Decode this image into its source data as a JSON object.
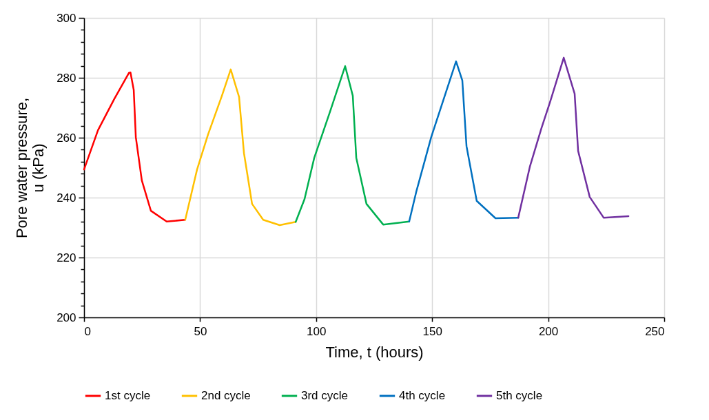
{
  "chart_data": {
    "type": "line",
    "xlabel": "Time, t (hours)",
    "ylabel": "Pore water pressure, u (kPa)",
    "xlim": [
      0,
      250
    ],
    "xticks": [
      0,
      50,
      100,
      150,
      200,
      250
    ],
    "ylim": [
      200,
      300
    ],
    "yticks": [
      200,
      {
        "value": 204,
        "label": null
      },
      {
        "value": 208,
        "label": null
      },
      {
        "value": 212,
        "label": null
      },
      {
        "value": 216,
        "label": null
      },
      220,
      {
        "value": 224,
        "label": null
      },
      {
        "value": 228,
        "label": null
      },
      {
        "value": 232,
        "label": null
      },
      {
        "value": 236,
        "label": null
      },
      240,
      {
        "value": 244,
        "label": null
      },
      {
        "value": 248,
        "label": null
      },
      {
        "value": 252,
        "label": null
      },
      {
        "value": 256,
        "label": null
      },
      260,
      {
        "value": 264,
        "label": null
      },
      {
        "value": 268,
        "label": null
      },
      {
        "value": 272,
        "label": null
      },
      {
        "value": 276,
        "label": null
      },
      280,
      {
        "value": 284,
        "label": null
      },
      {
        "value": 288,
        "label": null
      },
      {
        "value": 292,
        "label": null
      },
      {
        "value": 296,
        "label": null
      },
      300
    ],
    "grid": true,
    "legend": "bottom",
    "marker": "none",
    "line_style": "solid",
    "series": [
      {
        "name": "1st cycle",
        "color": "#ff0000",
        "x": [
          0,
          6,
          13,
          19.3,
          20,
          21.4,
          22.3,
          24.9,
          28.8,
          35.6,
          43.6
        ],
        "values": [
          249.4,
          262.5,
          272.9,
          281.6,
          281.8,
          276,
          260.2,
          245.7,
          235.6,
          232,
          232.6
        ]
      },
      {
        "name": "2nd cycle",
        "color": "#ffc000",
        "x": [
          43.6,
          48.7,
          53.4,
          59.4,
          63.2,
          66.8,
          68.9,
          72.4,
          77.2,
          84.3,
          91.2
        ],
        "values": [
          232.6,
          249.4,
          261,
          274,
          282.8,
          273.6,
          254.9,
          237.9,
          232.6,
          230.8,
          231.9
        ]
      },
      {
        "name": "3rd cycle",
        "color": "#00b050",
        "x": [
          91.2,
          95,
          99.2,
          106,
          112.5,
          115.8,
          117.3,
          121.7,
          128.9,
          140.1
        ],
        "values": [
          231.9,
          239.5,
          253.3,
          268.7,
          283.9,
          274,
          253.3,
          237.9,
          231,
          232
        ]
      },
      {
        "name": "4th cycle",
        "color": "#0070c0",
        "x": [
          140.1,
          143.1,
          149.6,
          160.3,
          163,
          164.8,
          169.2,
          177.3,
          187.1
        ],
        "values": [
          232,
          241.8,
          260.2,
          285.5,
          279.1,
          257.2,
          238.9,
          233.1,
          233.3
        ]
      },
      {
        "name": "5th cycle",
        "color": "#7030a0",
        "x": [
          187.1,
          192.1,
          197.1,
          201,
          206.7,
          211.4,
          212.9,
          217.9,
          223.9,
          234.6
        ],
        "values": [
          233.3,
          250.3,
          263.2,
          272.4,
          286.7,
          274.7,
          255.6,
          240.2,
          233.3,
          233.8
        ]
      }
    ]
  }
}
